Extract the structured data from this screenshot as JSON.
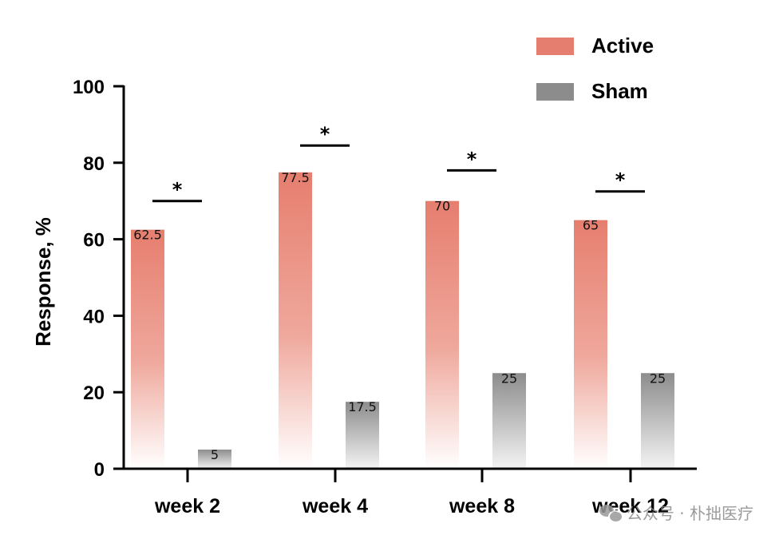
{
  "chart_data": {
    "type": "bar",
    "title": "",
    "xlabel": "",
    "ylabel": "Response, %",
    "ylim": [
      0,
      100
    ],
    "yticks": [
      0,
      20,
      40,
      60,
      80,
      100
    ],
    "categories": [
      "week 2",
      "week 4",
      "week 8",
      "week 12"
    ],
    "series": [
      {
        "name": "Active",
        "values": [
          62.5,
          77.5,
          70,
          65
        ],
        "labels": [
          "62.5",
          "77.5",
          "70",
          "65"
        ],
        "color": "#E67E6F"
      },
      {
        "name": "Sham",
        "values": [
          5,
          17.5,
          25,
          25
        ],
        "labels": [
          "5",
          "17.5",
          "25",
          "25"
        ],
        "color": "#8C8C8C"
      }
    ],
    "legend_position": "top-right",
    "significance": [
      {
        "category": "week 2",
        "marker": "*",
        "level": 70
      },
      {
        "category": "week 4",
        "marker": "*",
        "level": 84.5
      },
      {
        "category": "week 8",
        "marker": "*",
        "level": 78
      },
      {
        "category": "week 12",
        "marker": "*",
        "level": 72.5
      }
    ]
  },
  "watermark": {
    "text": "公众号 · 朴拙医疗",
    "icon": "wechat-icon"
  }
}
